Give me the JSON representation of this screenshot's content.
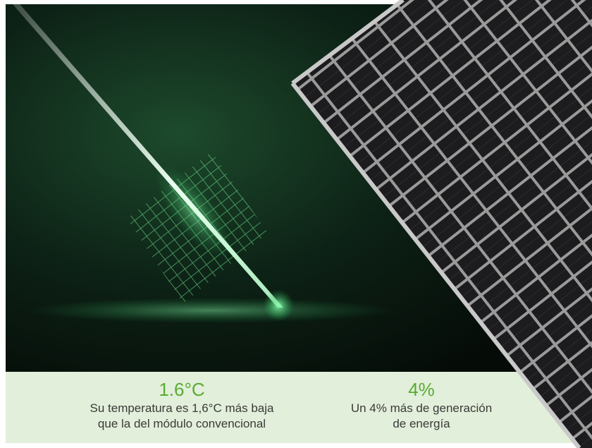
{
  "stats": [
    {
      "value": "1.6°C",
      "lines": [
        "Su temperatura es 1,6°C más baja",
        "que la del módulo convencional"
      ]
    },
    {
      "value": "4%",
      "lines": [
        "Un 4% más de generación",
        "de energía"
      ]
    }
  ]
}
